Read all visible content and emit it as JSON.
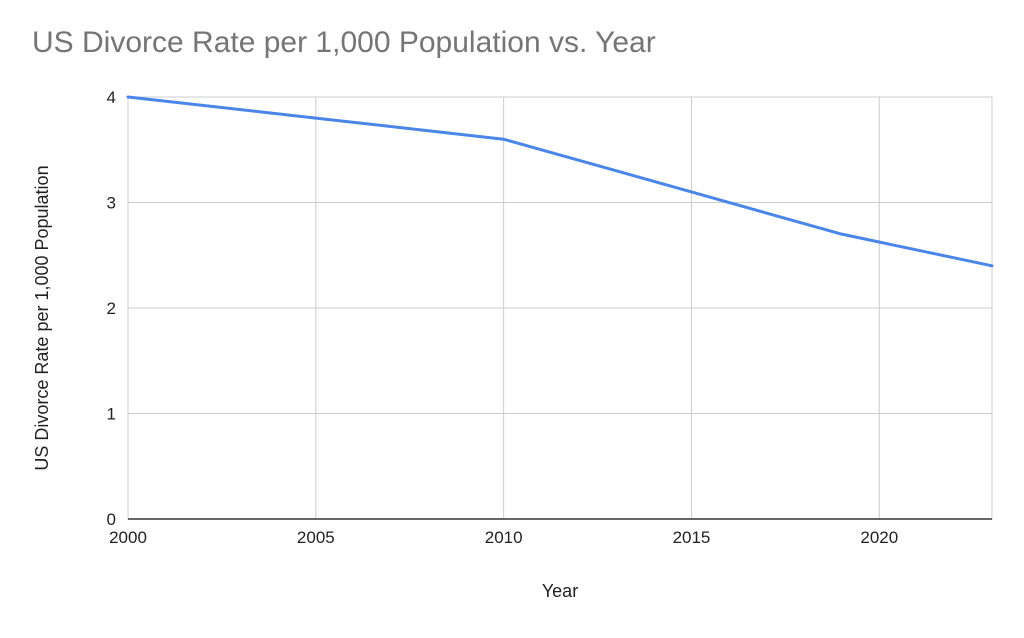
{
  "chart_data": {
    "type": "line",
    "title": "US Divorce Rate per 1,000 Population vs. Year",
    "xlabel": "Year",
    "ylabel": "US Divorce Rate per 1,000 Population",
    "xlim": [
      2000,
      2023
    ],
    "ylim": [
      0,
      4
    ],
    "x_ticks": [
      2000,
      2005,
      2010,
      2015,
      2020
    ],
    "y_ticks": [
      0,
      1,
      2,
      3,
      4
    ],
    "grid": true,
    "legend": "none",
    "series": [
      {
        "color": "#4a86e8",
        "x": [
          2000,
          2005,
          2010,
          2015,
          2019,
          2023
        ],
        "y": [
          4.0,
          3.8,
          3.6,
          3.1,
          2.7,
          2.4
        ]
      }
    ],
    "colors": {
      "grid": "#cccccc",
      "axis": "#333333",
      "title": "#757575",
      "label": "#222222"
    }
  }
}
